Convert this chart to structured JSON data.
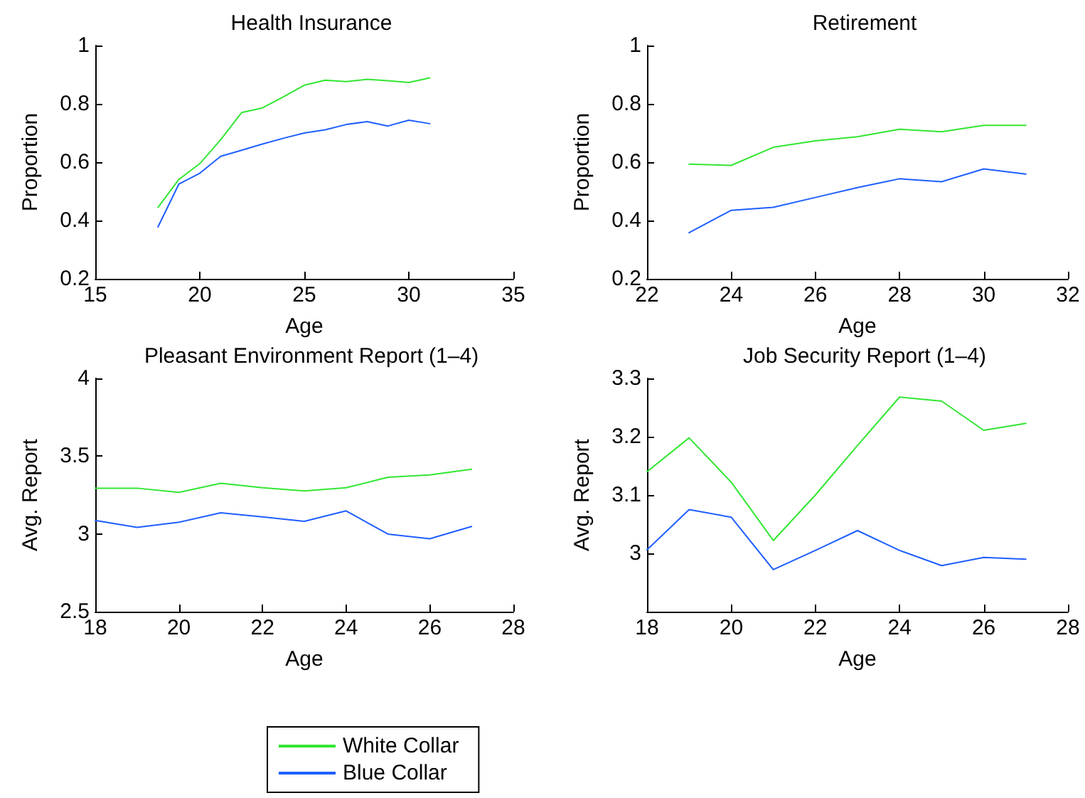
{
  "chart_data": [
    {
      "type": "line",
      "title": "Health Insurance",
      "xlabel": "Age",
      "ylabel": "Proportion",
      "xlim": [
        15,
        35
      ],
      "xticks": [
        15,
        20,
        25,
        30,
        35
      ],
      "ylim": [
        0.2,
        1
      ],
      "yticks": [
        0.2,
        0.4,
        0.6,
        0.8,
        1
      ],
      "grid": false,
      "legend": "bottom",
      "marker": "none",
      "line_style": "solid",
      "x": [
        18,
        19,
        20,
        21,
        22,
        23,
        24,
        25,
        26,
        27,
        28,
        29,
        30,
        31
      ],
      "series": [
        {
          "name": "White Collar",
          "color": "#33e633",
          "values": [
            0.445,
            0.541,
            0.595,
            0.677,
            0.77,
            0.786,
            0.824,
            0.864,
            0.881,
            0.876,
            0.884,
            0.879,
            0.873,
            0.889
          ]
        },
        {
          "name": "Blue Collar",
          "color": "#1f5fff",
          "values": [
            0.378,
            0.525,
            0.562,
            0.62,
            0.641,
            0.662,
            0.682,
            0.7,
            0.711,
            0.729,
            0.739,
            0.724,
            0.744,
            0.732
          ]
        }
      ]
    },
    {
      "type": "line",
      "title": "Retirement",
      "xlabel": "Age",
      "ylabel": "Proportion",
      "xlim": [
        22,
        32
      ],
      "xticks": [
        22,
        24,
        26,
        28,
        30,
        32
      ],
      "ylim": [
        0.2,
        1
      ],
      "yticks": [
        0.2,
        0.4,
        0.6,
        0.8,
        1
      ],
      "grid": false,
      "legend": "bottom",
      "marker": "none",
      "line_style": "solid",
      "x": [
        23,
        24,
        25,
        26,
        27,
        28,
        29,
        30,
        31
      ],
      "series": [
        {
          "name": "White Collar",
          "color": "#33e633",
          "values": [
            0.593,
            0.589,
            0.651,
            0.673,
            0.687,
            0.713,
            0.704,
            0.726,
            0.726
          ]
        },
        {
          "name": "Blue Collar",
          "color": "#1f5fff",
          "values": [
            0.358,
            0.435,
            0.445,
            0.479,
            0.513,
            0.543,
            0.533,
            0.577,
            0.559
          ]
        }
      ]
    },
    {
      "type": "line",
      "title": "Pleasant Environment Report (1–4)",
      "xlabel": "Age",
      "ylabel": "Avg. Report",
      "xlim": [
        18,
        28
      ],
      "xticks": [
        18,
        20,
        22,
        24,
        26,
        28
      ],
      "ylim": [
        2.5,
        4
      ],
      "yticks": [
        2.5,
        3,
        3.5,
        4
      ],
      "grid": false,
      "legend": "bottom",
      "marker": "none",
      "line_style": "solid",
      "x": [
        18,
        19,
        20,
        21,
        22,
        23,
        24,
        25,
        26,
        27
      ],
      "series": [
        {
          "name": "White Collar",
          "color": "#33e633",
          "values": [
            3.294,
            3.294,
            3.267,
            3.325,
            3.297,
            3.276,
            3.297,
            3.364,
            3.379,
            3.416
          ]
        },
        {
          "name": "Blue Collar",
          "color": "#1f5fff",
          "values": [
            3.087,
            3.042,
            3.075,
            3.136,
            3.109,
            3.081,
            3.148,
            2.999,
            2.969,
            3.048
          ]
        }
      ]
    },
    {
      "type": "line",
      "title": "Job Security Report (1–4)",
      "xlabel": "Age",
      "ylabel": "Avg. Report",
      "xlim": [
        18,
        28
      ],
      "xticks": [
        18,
        20,
        22,
        24,
        26,
        28
      ],
      "ylim": [
        2.9,
        3.3
      ],
      "yticks": [
        3,
        3.1,
        3.2,
        3.3
      ],
      "grid": false,
      "legend": "bottom",
      "marker": "none",
      "line_style": "solid",
      "x": [
        18,
        19,
        20,
        21,
        22,
        23,
        24,
        25,
        26,
        27
      ],
      "series": [
        {
          "name": "White Collar",
          "color": "#33e633",
          "values": [
            3.14,
            3.198,
            3.122,
            3.022,
            3.1,
            3.185,
            3.268,
            3.261,
            3.211,
            3.223
          ]
        },
        {
          "name": "Blue Collar",
          "color": "#1f5fff",
          "values": [
            3.006,
            3.075,
            3.062,
            2.972,
            3.005,
            3.039,
            3.005,
            2.979,
            2.993,
            2.99
          ]
        }
      ]
    }
  ]
}
